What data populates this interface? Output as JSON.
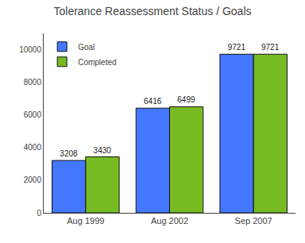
{
  "chart_data": {
    "type": "bar",
    "title": "Tolerance Reassessment Status / Goals",
    "categories": [
      "Aug 1999",
      "Aug 2002",
      "Sep 2007"
    ],
    "series": [
      {
        "name": "Goal",
        "color": "#4477FF",
        "values": [
          3208,
          6416,
          9721
        ]
      },
      {
        "name": "Completed",
        "color": "#77BB22",
        "values": [
          3430,
          6499,
          9721
        ]
      }
    ],
    "ylim": [
      0,
      11000
    ],
    "yticks": [
      0,
      2000,
      4000,
      6000,
      8000,
      10000
    ],
    "grid": false,
    "legend": "upper left",
    "data_labels": true
  }
}
